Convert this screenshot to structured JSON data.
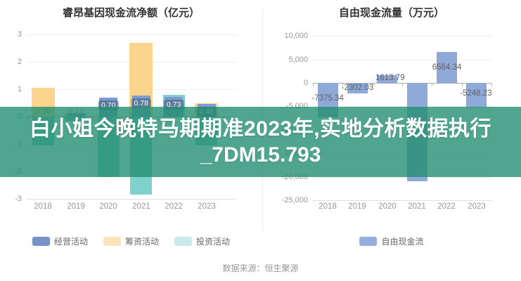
{
  "overlay": {
    "line1": "白小姐今晚特马期期准2023年,实地分析数据执行",
    "line2": "_7DM15.793",
    "band_color": "rgba(35,143,113,0.8)",
    "text_color": "#ffffff"
  },
  "source": {
    "label": "数据来源：恒生聚源"
  },
  "chart_data": [
    {
      "type": "bar",
      "title": "睿昂基因现金流净额（亿元）",
      "categories": [
        "2018",
        "2019",
        "2020",
        "2021",
        "2022",
        "2023"
      ],
      "series": [
        {
          "name": "经营活动",
          "color": "#7b9bd2",
          "legend_color": "#7593c6",
          "values": [
            0.0,
            0.12,
            0.7,
            0.78,
            0.73,
            0.45
          ]
        },
        {
          "name": "筹资活动",
          "color": "#fbd48e",
          "legend_color": "#fce3b8",
          "values": [
            1.05,
            0.1,
            0,
            2.7,
            0,
            0.5
          ]
        },
        {
          "name": "投资活动",
          "color": "#7fd1cd",
          "legend_color": "#c8eae8",
          "values": [
            -1.05,
            -0.15,
            -2.2,
            -2.85,
            0.8,
            -1.05
          ]
        }
      ],
      "value_labels": [
        {
          "text": "0.00",
          "style": "plain"
        },
        {
          "text": "0.12",
          "style": "plain"
        },
        {
          "text": "0.70",
          "style": "badge"
        },
        {
          "text": "0.78",
          "style": "badge"
        },
        {
          "text": "0.73",
          "style": "badge"
        },
        {
          "text": "0.45",
          "style": "badge"
        }
      ],
      "label_badge_color": "rgba(70,95,110,0.55)",
      "ylim": [
        -3,
        3
      ],
      "yticks": [
        {
          "label": "3",
          "value": 3
        },
        {
          "label": "2",
          "value": 2
        },
        {
          "label": "1",
          "value": 1
        },
        {
          "label": "0",
          "value": 0
        },
        {
          "label": "-1",
          "value": -1
        },
        {
          "label": "-2",
          "value": -2
        },
        {
          "label": "-3",
          "value": -3
        }
      ],
      "legend_position": "bottom",
      "grid": true
    },
    {
      "type": "bar",
      "title": "自由现金流量（万元）",
      "categories": [
        "2018",
        "2019",
        "2020",
        "2021",
        "2022",
        "2023"
      ],
      "series": [
        {
          "name": "自由现金流",
          "color": "#8fa9d9",
          "legend_color": "#94afdd",
          "values": [
            -7375.34,
            -2302.03,
            1613.79,
            -21030,
            6564.34,
            -5248.23
          ]
        }
      ],
      "value_labels": [
        "-7375.34",
        "-2302.03",
        "1613.79",
        "",
        "6564.34",
        "-5248.23"
      ],
      "ylim": [
        -25000,
        10000
      ],
      "yticks": [
        {
          "label": "10,000",
          "value": 10000
        },
        {
          "label": "5,000",
          "value": 5000
        },
        {
          "label": "0",
          "value": 0
        },
        {
          "label": "-5,000",
          "value": -5000
        },
        {
          "label": "-10,000",
          "value": -10000
        },
        {
          "label": "-15,000",
          "value": -15000
        },
        {
          "label": "-20,000",
          "value": -20000
        },
        {
          "label": "-25,000",
          "value": -25000
        }
      ],
      "legend_position": "bottom",
      "grid": true
    }
  ]
}
